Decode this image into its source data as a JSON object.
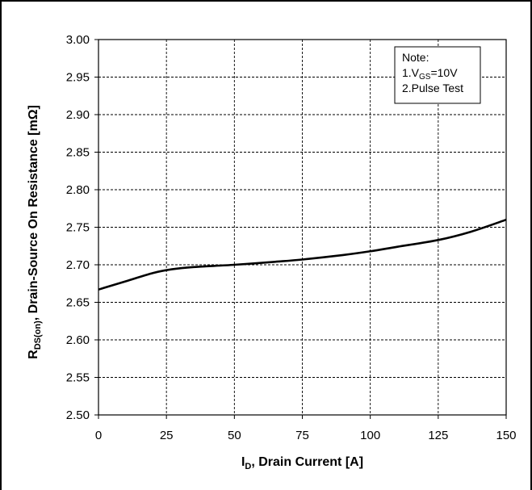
{
  "chart_data": {
    "type": "line",
    "xlabel": {
      "main": "I",
      "sub": "D",
      "rest": ", Drain Current [A]"
    },
    "ylabel": {
      "main": "R",
      "sub": "DS(on)",
      "rest": ", Drain-Source On Resistance [mΩ]"
    },
    "xlim": [
      0,
      150
    ],
    "ylim": [
      2.5,
      3.0
    ],
    "x_ticks": [
      "0",
      "25",
      "50",
      "75",
      "100",
      "125",
      "150"
    ],
    "y_ticks": [
      "2.50",
      "2.55",
      "2.60",
      "2.65",
      "2.70",
      "2.75",
      "2.80",
      "2.85",
      "2.90",
      "2.95",
      "3.00"
    ],
    "grid": "dashed",
    "note": {
      "title": "Note:",
      "line1": {
        "prefix": "1.V",
        "sub": "GS",
        "suffix": "=10V"
      },
      "line2": "2.Pulse Test",
      "placement": "top-right"
    },
    "series": [
      {
        "color": "#000000",
        "x": [
          0,
          10,
          20,
          27,
          35,
          50,
          65,
          75,
          90,
          100,
          110,
          125,
          137,
          150
        ],
        "y": [
          2.667,
          2.678,
          2.689,
          2.694,
          2.697,
          2.7,
          2.704,
          2.707,
          2.713,
          2.718,
          2.724,
          2.733,
          2.744,
          2.76
        ]
      }
    ]
  }
}
